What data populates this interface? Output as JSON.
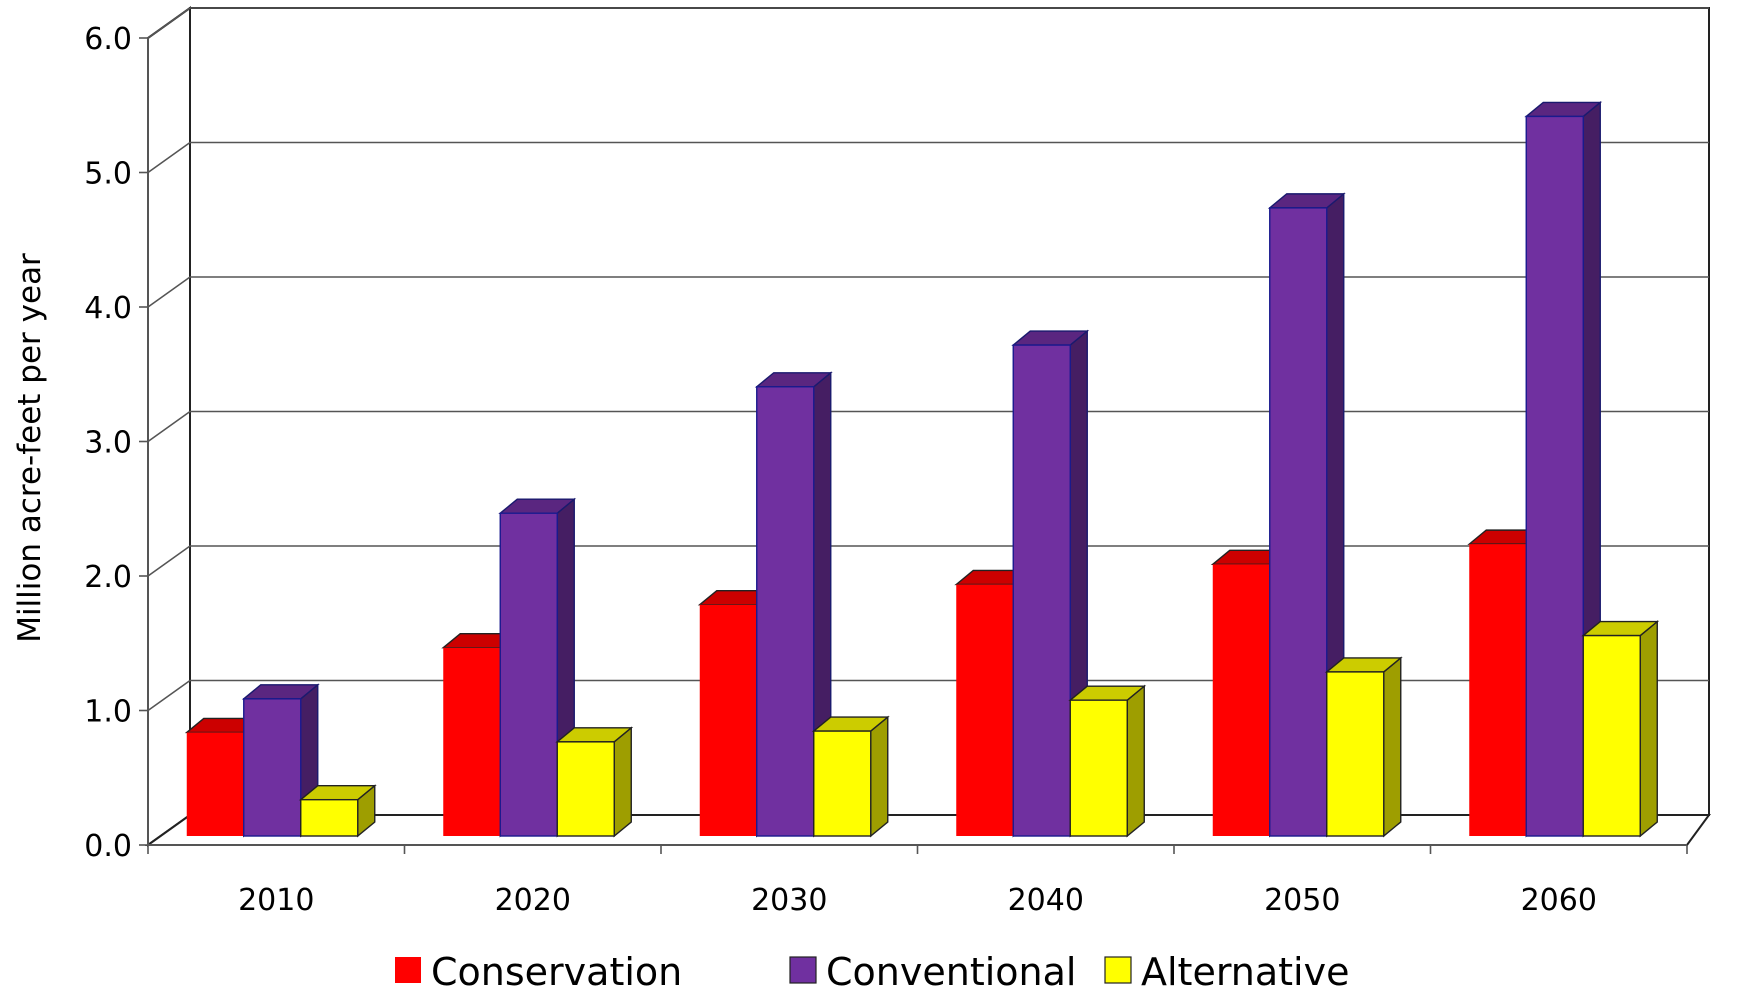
{
  "chart_data": {
    "type": "bar",
    "ylabel": "Million acre-feet per year",
    "categories": [
      "2010",
      "2020",
      "2030",
      "2040",
      "2050",
      "2060"
    ],
    "ylim": [
      0,
      6
    ],
    "yticks": [
      "0.0",
      "1.0",
      "2.0",
      "3.0",
      "4.0",
      "5.0",
      "6.0"
    ],
    "grid": true,
    "legend_position": "bottom",
    "series": [
      {
        "name": "Conservation",
        "color": "#ff0000",
        "values": [
          0.77,
          1.4,
          1.72,
          1.87,
          2.02,
          2.17
        ]
      },
      {
        "name": "Conventional",
        "color": "#7030a0",
        "values": [
          1.02,
          2.4,
          3.34,
          3.65,
          4.67,
          5.35
        ]
      },
      {
        "name": "Alternative",
        "color": "#ffff00",
        "values": [
          0.27,
          0.7,
          0.78,
          1.01,
          1.22,
          1.49
        ]
      }
    ]
  }
}
